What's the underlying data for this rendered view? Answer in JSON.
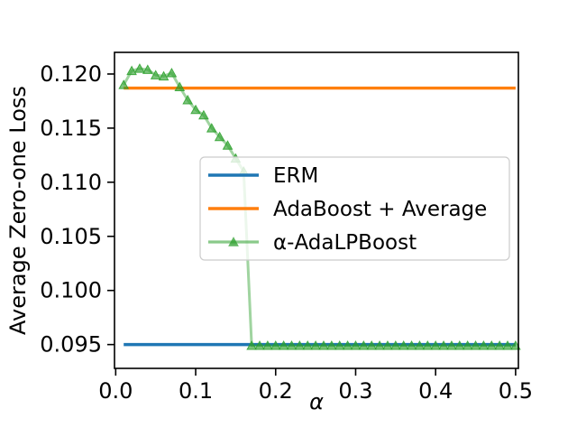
{
  "figure": {
    "background": "#ffffff"
  },
  "chart_data": {
    "type": "line",
    "title": "",
    "xlabel": "α",
    "ylabel": "Average Zero-one Loss",
    "xlim": [
      -0.0015,
      0.5035
    ],
    "ylim": [
      0.0928,
      0.122
    ],
    "grid": false,
    "xticks": {
      "values": [
        0.0,
        0.1,
        0.2,
        0.3,
        0.4,
        0.5
      ],
      "labels": [
        "0.0",
        "0.1",
        "0.2",
        "0.3",
        "0.4",
        "0.5"
      ]
    },
    "yticks": {
      "values": [
        0.095,
        0.1,
        0.105,
        0.11,
        0.115,
        0.12
      ],
      "labels": [
        "0.095",
        "0.100",
        "0.105",
        "0.110",
        "0.115",
        "0.120"
      ]
    },
    "legend": {
      "position": "center",
      "frame_fill": "rgba(255,255,255,0.8)",
      "frame_border": "#cccccc",
      "entries": [
        {
          "label": "ERM",
          "color": "#1f77b4",
          "marker": "none"
        },
        {
          "label": "AdaBoost + Average",
          "color": "#ff7f0e",
          "marker": "none"
        },
        {
          "label": "α-AdaLPBoost",
          "color": "#2ca02c",
          "marker": "triangle-up"
        }
      ]
    },
    "series": [
      {
        "name": "ERM",
        "color": "#1f77b4",
        "alpha": 1.0,
        "marker": "none",
        "x": [
          0.01,
          0.5
        ],
        "y": [
          0.095,
          0.095
        ]
      },
      {
        "name": "AdaBoost + Average",
        "color": "#ff7f0e",
        "alpha": 1.0,
        "marker": "none",
        "x": [
          0.01,
          0.5
        ],
        "y": [
          0.1187,
          0.1187
        ]
      },
      {
        "name": "α-AdaLPBoost",
        "color": "#2ca02c",
        "alpha": 0.5,
        "marker": "triangle-up",
        "x": [
          0.01,
          0.02,
          0.03,
          0.04,
          0.05,
          0.06,
          0.07,
          0.08,
          0.09,
          0.1,
          0.11,
          0.12,
          0.13,
          0.14,
          0.15,
          0.16,
          0.17,
          0.18,
          0.19,
          0.2,
          0.21,
          0.22,
          0.23,
          0.24,
          0.25,
          0.26,
          0.27,
          0.28,
          0.29,
          0.3,
          0.31,
          0.32,
          0.33,
          0.34,
          0.35,
          0.36,
          0.37,
          0.38,
          0.39,
          0.4,
          0.41,
          0.42,
          0.43,
          0.44,
          0.45,
          0.46,
          0.47,
          0.48,
          0.49,
          0.5
        ],
        "y": [
          0.119,
          0.1203,
          0.1205,
          0.1204,
          0.1199,
          0.1198,
          0.1201,
          0.1188,
          0.1176,
          0.1167,
          0.1162,
          0.115,
          0.1142,
          0.1134,
          0.1122,
          0.111,
          0.0949,
          0.0949,
          0.0949,
          0.0949,
          0.0949,
          0.0949,
          0.0949,
          0.0949,
          0.0949,
          0.0949,
          0.0949,
          0.0949,
          0.0949,
          0.0949,
          0.0949,
          0.0949,
          0.0949,
          0.0949,
          0.0949,
          0.0949,
          0.0949,
          0.0949,
          0.0949,
          0.0949,
          0.0949,
          0.0949,
          0.0949,
          0.0949,
          0.0949,
          0.0949,
          0.0949,
          0.0949,
          0.0949,
          0.0949
        ]
      }
    ]
  }
}
